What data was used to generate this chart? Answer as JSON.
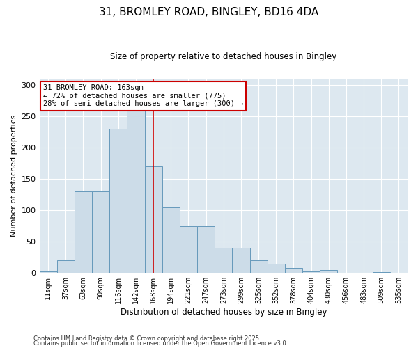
{
  "title1": "31, BROMLEY ROAD, BINGLEY, BD16 4DA",
  "title2": "Size of property relative to detached houses in Bingley",
  "xlabel": "Distribution of detached houses by size in Bingley",
  "ylabel": "Number of detached properties",
  "categories": [
    "11sqm",
    "37sqm",
    "63sqm",
    "90sqm",
    "116sqm",
    "142sqm",
    "168sqm",
    "194sqm",
    "221sqm",
    "247sqm",
    "273sqm",
    "299sqm",
    "325sqm",
    "352sqm",
    "378sqm",
    "404sqm",
    "430sqm",
    "456sqm",
    "483sqm",
    "509sqm",
    "535sqm"
  ],
  "values": [
    3,
    20,
    130,
    130,
    230,
    265,
    170,
    105,
    75,
    75,
    40,
    40,
    20,
    15,
    8,
    3,
    5,
    0,
    0,
    1,
    0
  ],
  "bar_color": "#ccdce8",
  "bar_edge_color": "#6699bb",
  "figure_bg": "#ffffff",
  "axes_bg": "#dde8f0",
  "grid_color": "#ffffff",
  "vline_x": 6,
  "vline_color": "#cc0000",
  "annotation_text": "31 BROMLEY ROAD: 163sqm\n← 72% of detached houses are smaller (775)\n28% of semi-detached houses are larger (300) →",
  "annotation_box_facecolor": "#ffffff",
  "annotation_box_edgecolor": "#cc0000",
  "ylim": [
    0,
    310
  ],
  "yticks": [
    0,
    50,
    100,
    150,
    200,
    250,
    300
  ],
  "footer1": "Contains HM Land Registry data © Crown copyright and database right 2025.",
  "footer2": "Contains public sector information licensed under the Open Government Licence v3.0."
}
